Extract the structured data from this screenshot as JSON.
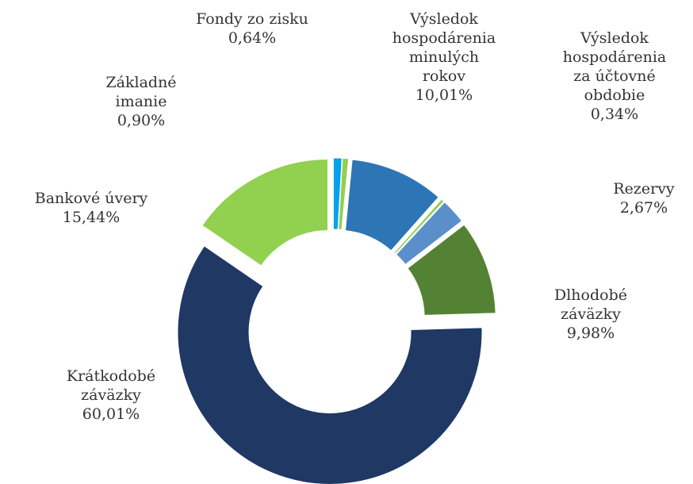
{
  "chart_data": {
    "type": "donut",
    "categories": [
      "Základné imanie",
      "Fondy zo zisku",
      "Výsledok hospodárenia minulých rokov",
      "Výsledok hospodárenia za účtovné obdobie",
      "Rezervy",
      "Dlhodobé záväzky",
      "Krátkodobé záväzky",
      "Bankové úvery"
    ],
    "values": [
      0.9,
      0.64,
      10.01,
      0.34,
      2.67,
      9.98,
      60.01,
      15.44
    ],
    "value_labels": [
      "0,90%",
      "0,64%",
      "10,01%",
      "0,34%",
      "2,67%",
      "9,98%",
      "60,01%",
      "15,44%"
    ],
    "colors": [
      "#00a2e8",
      "#92d050",
      "#2e75b6",
      "#92d050",
      "#5b8fc9",
      "#548235",
      "#1f3864",
      "#92d050"
    ]
  }
}
